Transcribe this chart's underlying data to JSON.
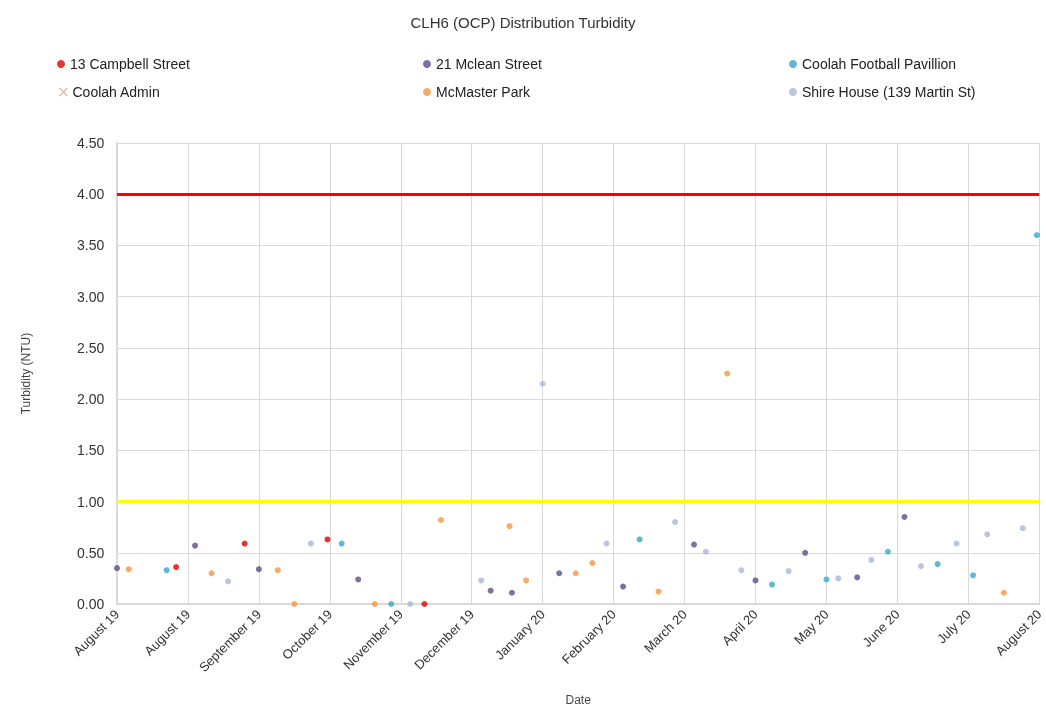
{
  "chart_data": {
    "type": "scatter",
    "title": "CLH6 (OCP) Distribution Turbidity",
    "xlabel": "Date",
    "ylabel": "Turbidity (NTU)",
    "series": [
      {
        "name": "13 Campbell Street",
        "color": "#e00000",
        "x": [
          "2019-08-26",
          "2019-09-24",
          "2019-10-29",
          "2019-12-09"
        ],
        "values": [
          0.36,
          0.59,
          0.63,
          0
        ]
      },
      {
        "name": "21 Mclean Street",
        "color": "#5f4b8b",
        "x": [
          "2019-08-01",
          "2019-09-03",
          "2019-09-30",
          "2019-11-11",
          "2020-01-06",
          "2020-01-15",
          "2020-02-04",
          "2020-03-02",
          "2020-04-01",
          "2020-04-27",
          "2020-05-18",
          "2020-06-09",
          "2020-06-29"
        ],
        "values": [
          0.35,
          0.57,
          0.34,
          0.24,
          0.13,
          0.11,
          0.3,
          0.17,
          0.58,
          0.23,
          0.5,
          0.26,
          0.85
        ]
      },
      {
        "name": "Coolah Football Pavillion",
        "color": "#36a9c9",
        "x": [
          "2019-08-22",
          "2019-11-04",
          "2019-11-25",
          "2020-03-09",
          "2020-05-04",
          "2020-05-27",
          "2020-06-22",
          "2020-07-13",
          "2020-07-28",
          "2020-08-24"
        ],
        "values": [
          0.33,
          0.59,
          0,
          0.63,
          0.19,
          0.24,
          0.51,
          0.39,
          0.28,
          3.6
        ]
      },
      {
        "name": "Coolah Admin",
        "color": "#e6a3a3",
        "marker": "cross"
      },
      {
        "name": "McMaster Park",
        "color": "#f7953d",
        "x": [
          "2019-08-06",
          "2019-09-10",
          "2019-10-08",
          "2019-10-15",
          "2019-11-18",
          "2019-12-16",
          "2020-01-14",
          "2020-01-21",
          "2020-02-11",
          "2020-02-18",
          "2020-03-17",
          "2020-04-15",
          "2020-08-10"
        ],
        "values": [
          0.34,
          0.3,
          0.33,
          0,
          0,
          0.82,
          0.76,
          0.23,
          0.3,
          0.4,
          0.12,
          2.25,
          0.11
        ]
      },
      {
        "name": "Shire House (139 Martin St)",
        "color": "#a9b7d9",
        "x": [
          "2019-09-17",
          "2019-10-22",
          "2019-12-03",
          "2020-01-02",
          "2020-01-28",
          "2020-02-24",
          "2020-03-24",
          "2020-04-06",
          "2020-04-21",
          "2020-05-11",
          "2020-06-01",
          "2020-06-15",
          "2020-07-06",
          "2020-07-21",
          "2020-08-03",
          "2020-08-18"
        ],
        "values": [
          0.22,
          0.59,
          0,
          0.23,
          2.15,
          0.59,
          0.8,
          0.51,
          0.33,
          0.32,
          0.25,
          0.43,
          0.37,
          0.59,
          0.68,
          0.74
        ]
      }
    ],
    "marker": "circle",
    "ref_lines": [
      {
        "axis": "y",
        "value": 4,
        "color": "#ff0000"
      },
      {
        "axis": "y",
        "value": 1,
        "color": "#ffff00"
      }
    ],
    "xlim": [
      "2019-08-01",
      "2020-08-25"
    ],
    "xticks": [
      {
        "value": "2019-08-01",
        "label": "August 19"
      },
      {
        "value": "2019-08-31",
        "label": "August 19"
      },
      {
        "value": "2019-09-30",
        "label": "September 19"
      },
      {
        "value": "2019-10-30",
        "label": "October 19"
      },
      {
        "value": "2019-11-29",
        "label": "November 19"
      },
      {
        "value": "2019-12-29",
        "label": "December 19"
      },
      {
        "value": "2020-01-28",
        "label": "January 20"
      },
      {
        "value": "2020-02-27",
        "label": "February 20"
      },
      {
        "value": "2020-03-28",
        "label": "March 20"
      },
      {
        "value": "2020-04-27",
        "label": "April 20"
      },
      {
        "value": "2020-05-27",
        "label": "May 20"
      },
      {
        "value": "2020-06-26",
        "label": "June 20"
      },
      {
        "value": "2020-07-26",
        "label": "July 20"
      },
      {
        "value": "2020-08-25",
        "label": "August 20"
      }
    ],
    "ylim": [
      0,
      4.5
    ],
    "yticks": [
      {
        "value": 0,
        "label": "0.00"
      },
      {
        "value": 0.5,
        "label": "0.50"
      },
      {
        "value": 1,
        "label": "1.00"
      },
      {
        "value": 1.5,
        "label": "1.50"
      },
      {
        "value": 2,
        "label": "2.00"
      },
      {
        "value": 2.5,
        "label": "2.50"
      },
      {
        "value": 3,
        "label": "3.00"
      },
      {
        "value": 3.5,
        "label": "3.50"
      },
      {
        "value": 4,
        "label": "4.00"
      },
      {
        "value": 4.5,
        "label": "4.50"
      }
    ],
    "grid": true,
    "legend": "top"
  }
}
